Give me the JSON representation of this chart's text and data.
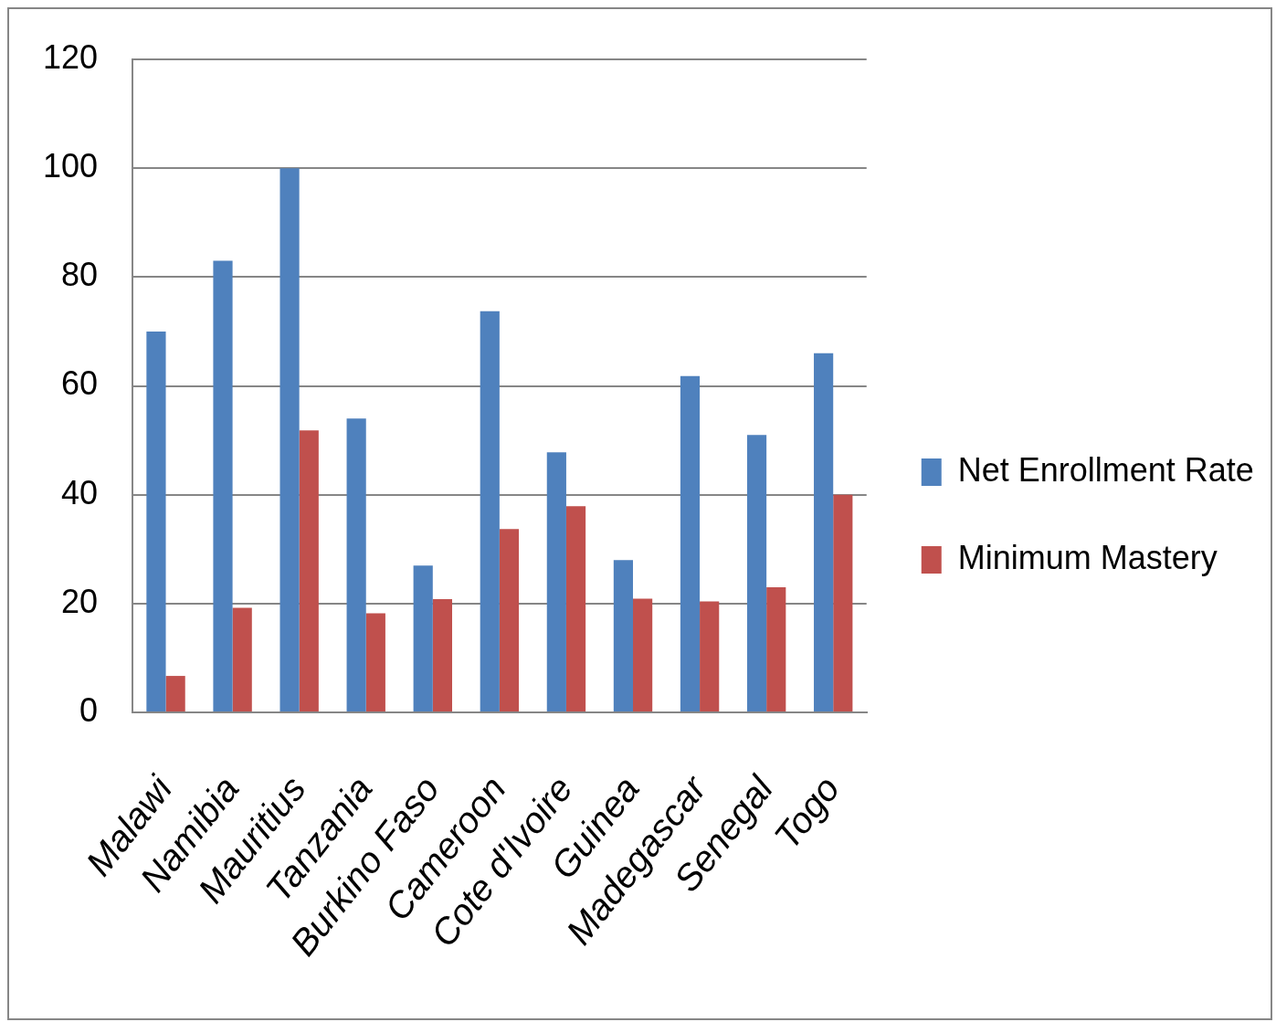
{
  "chart_data": {
    "type": "bar",
    "categories": [
      "Malawi",
      "Namibia",
      "Mauritius",
      "Tanzania",
      "Burkino Faso",
      "Cameroon",
      "Cote d'Ivoire",
      "Guinea",
      "Madegascar",
      "Senegal",
      "Togo"
    ],
    "series": [
      {
        "name": "Net Enrollment Rate",
        "color": "#4f81bd",
        "values": [
          70,
          83,
          100,
          54,
          27,
          73.7,
          47.8,
          28,
          61.8,
          51,
          66
        ]
      },
      {
        "name": "Minimum Mastery",
        "color": "#c0504d",
        "values": [
          6.7,
          19.2,
          51.8,
          18.2,
          20.8,
          33.7,
          37.9,
          20.9,
          20.4,
          23,
          40
        ]
      }
    ],
    "ylim": [
      0,
      120
    ],
    "yticks": [
      0,
      20,
      40,
      60,
      80,
      100,
      120
    ],
    "grid": "y",
    "legend": "right"
  }
}
